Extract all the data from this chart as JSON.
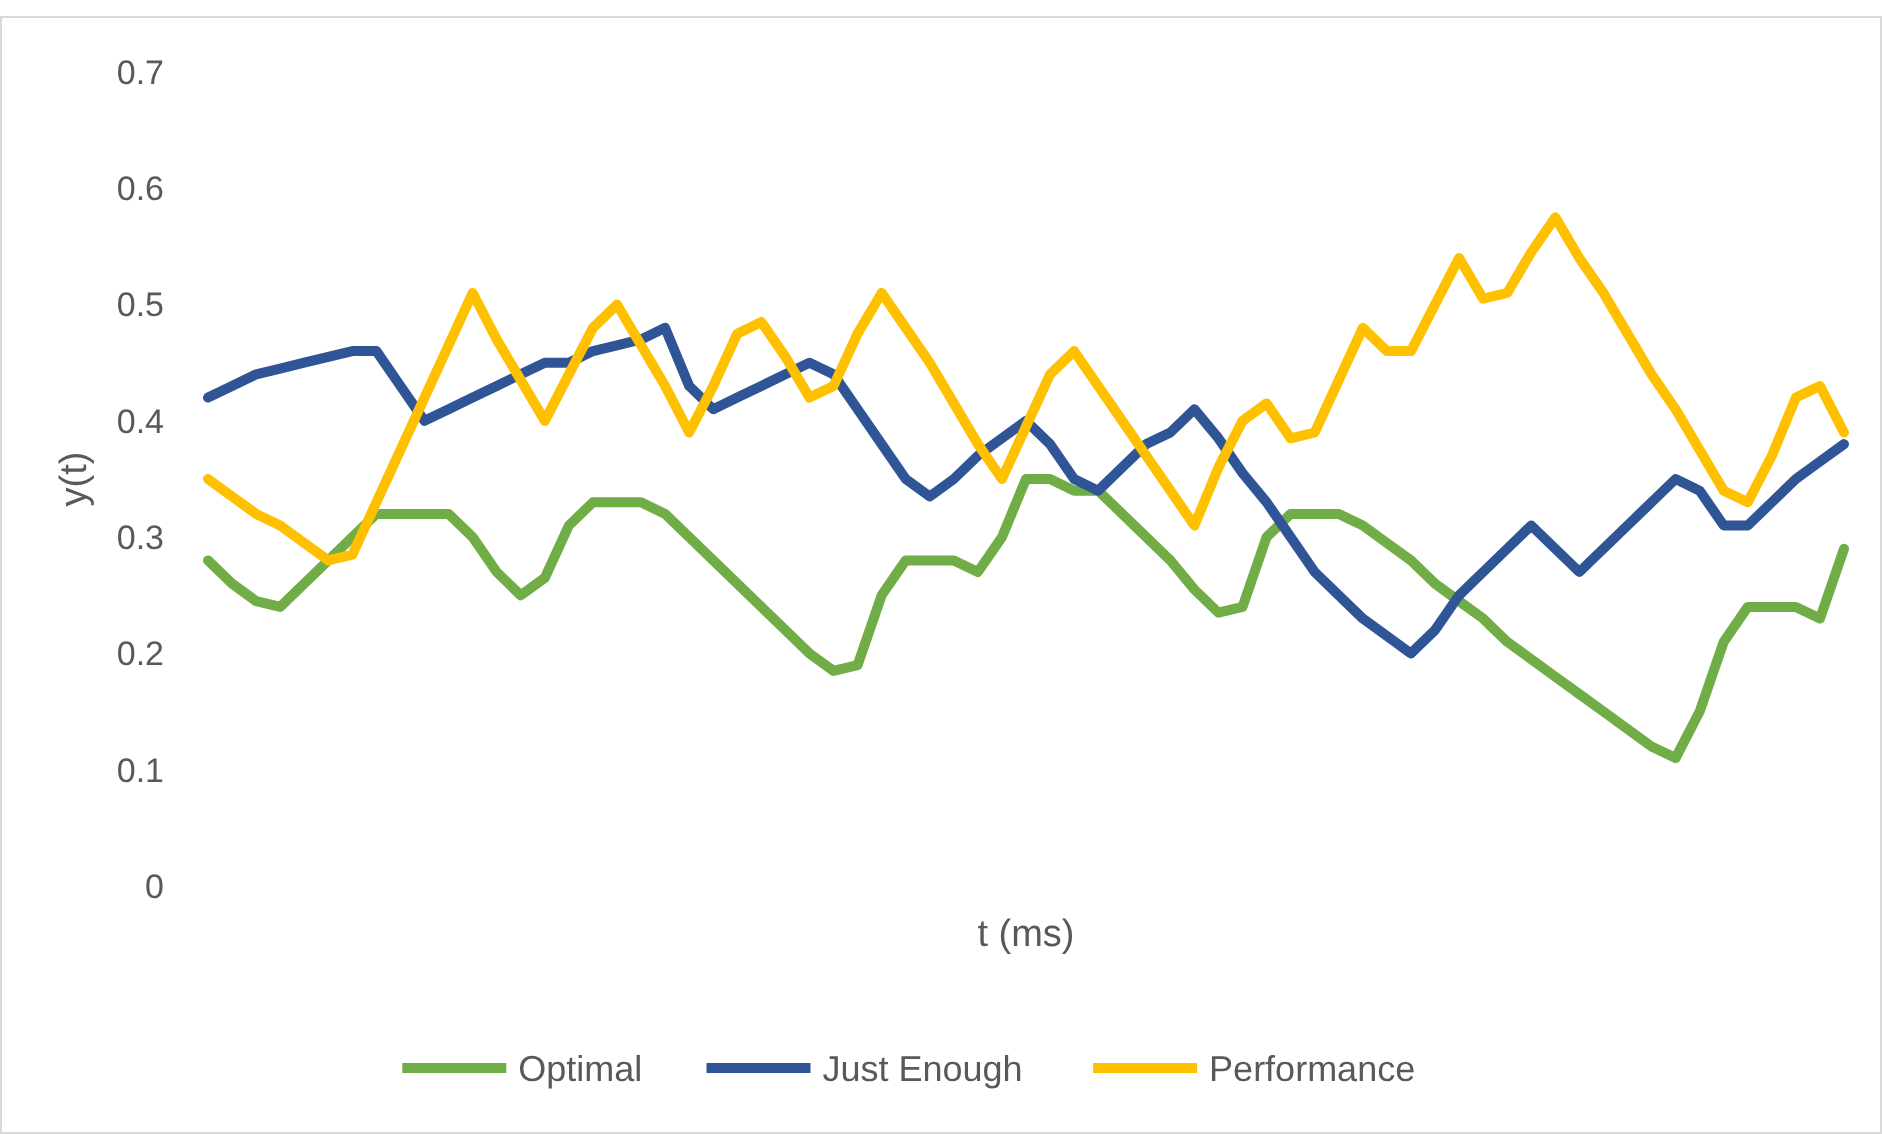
{
  "chart_data": {
    "type": "line",
    "xlabel": "t (ms)",
    "ylabel": "y(t)",
    "categories": [
      null,
      null,
      null,
      null,
      null,
      null,
      null,
      null,
      null,
      null,
      null,
      null,
      null,
      null,
      null,
      null,
      null,
      null,
      null,
      null,
      null,
      null,
      null,
      null,
      null,
      null,
      null,
      null,
      null,
      null,
      null,
      null,
      null,
      null,
      null,
      null,
      null,
      null,
      null,
      null,
      null,
      null,
      null,
      null,
      null,
      null,
      null,
      null,
      null,
      null,
      null,
      null,
      null,
      null,
      null,
      null,
      null,
      null,
      null,
      null,
      null,
      null,
      null,
      null,
      null,
      null,
      null,
      null,
      null
    ],
    "series": [
      {
        "name": "Optimal",
        "color": "#70ad47",
        "values": [
          0.28,
          0.26,
          0.245,
          0.24,
          0.26,
          0.28,
          0.3,
          0.32,
          0.32,
          0.32,
          0.32,
          0.3,
          0.27,
          0.25,
          0.265,
          0.31,
          0.33,
          0.33,
          0.33,
          0.32,
          0.3,
          0.28,
          0.26,
          0.24,
          0.22,
          0.2,
          0.185,
          0.19,
          0.25,
          0.28,
          0.28,
          0.28,
          0.27,
          0.3,
          0.35,
          0.35,
          0.34,
          0.34,
          0.32,
          0.3,
          0.28,
          0.255,
          0.235,
          0.24,
          0.3,
          0.32,
          0.32,
          0.32,
          0.31,
          0.295,
          0.28,
          0.26,
          0.245,
          0.23,
          0.21,
          0.195,
          0.18,
          0.165,
          0.15,
          0.135,
          0.12,
          0.11,
          0.15,
          0.21,
          0.24,
          0.24,
          0.24,
          0.23,
          0.29
        ]
      },
      {
        "name": "Just Enough",
        "color": "#2f5597",
        "values": [
          0.42,
          0.43,
          0.44,
          0.445,
          0.45,
          0.455,
          0.46,
          0.46,
          0.43,
          0.4,
          0.41,
          0.42,
          0.43,
          0.44,
          0.45,
          0.45,
          0.46,
          0.465,
          0.47,
          0.48,
          0.43,
          0.41,
          0.42,
          0.43,
          0.44,
          0.45,
          0.44,
          0.41,
          0.38,
          0.35,
          0.335,
          0.35,
          0.37,
          0.385,
          0.4,
          0.38,
          0.35,
          0.34,
          0.36,
          0.38,
          0.39,
          0.41,
          0.385,
          0.355,
          0.33,
          0.3,
          0.27,
          0.25,
          0.23,
          0.215,
          0.2,
          0.22,
          0.25,
          0.27,
          0.29,
          0.31,
          0.29,
          0.27,
          0.29,
          0.31,
          0.33,
          0.35,
          0.34,
          0.31,
          0.31,
          0.33,
          0.35,
          0.365,
          0.38
        ]
      },
      {
        "name": "Performance",
        "color": "#ffc000",
        "values": [
          0.35,
          0.335,
          0.32,
          0.31,
          0.295,
          0.28,
          0.285,
          0.33,
          0.375,
          0.42,
          0.465,
          0.51,
          0.47,
          0.435,
          0.4,
          0.44,
          0.48,
          0.5,
          0.465,
          0.43,
          0.39,
          0.43,
          0.475,
          0.485,
          0.455,
          0.42,
          0.43,
          0.475,
          0.51,
          0.48,
          0.45,
          0.415,
          0.38,
          0.35,
          0.395,
          0.44,
          0.46,
          0.43,
          0.4,
          0.37,
          0.34,
          0.31,
          0.36,
          0.4,
          0.415,
          0.385,
          0.39,
          0.435,
          0.48,
          0.46,
          0.46,
          0.5,
          0.54,
          0.505,
          0.51,
          0.545,
          0.575,
          0.54,
          0.51,
          0.475,
          0.44,
          0.41,
          0.375,
          0.34,
          0.33,
          0.37,
          0.42,
          0.43,
          0.39
        ]
      }
    ],
    "ylim": [
      0,
      0.7
    ],
    "yticks": [
      0,
      0.1,
      0.2,
      0.3,
      0.4,
      0.5,
      0.6,
      0.7
    ],
    "legend": "bottom"
  }
}
